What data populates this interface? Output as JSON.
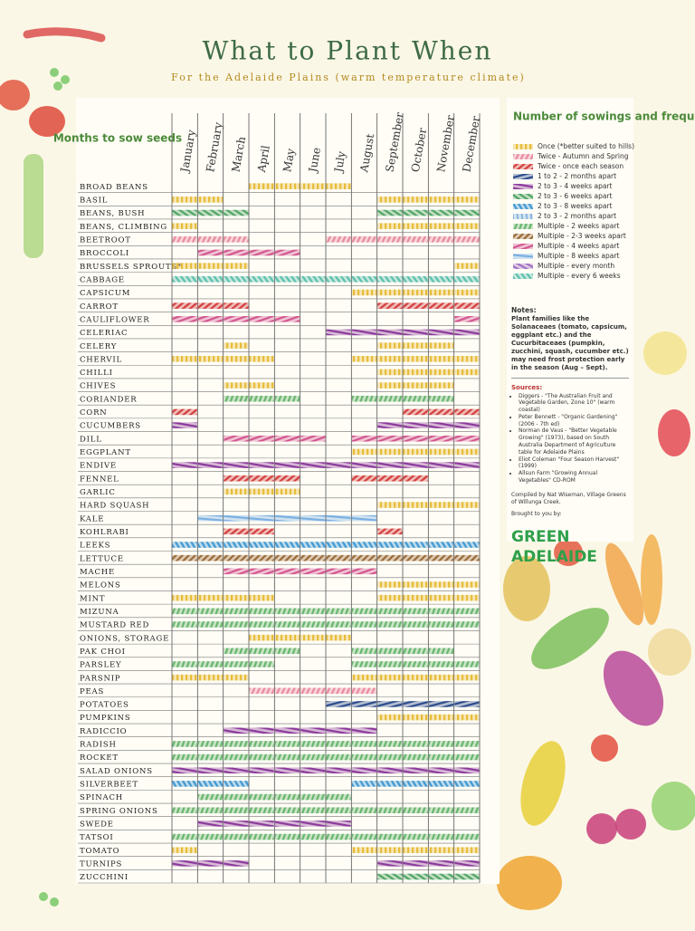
{
  "header": {
    "title": "What to Plant When",
    "subtitle": "For the Adelaide Plains (warm temperature climate)"
  },
  "table": {
    "corner": "Months to sow seeds",
    "months": [
      "January",
      "February",
      "March",
      "April",
      "May",
      "June",
      "July",
      "August",
      "September",
      "October",
      "November",
      "December"
    ],
    "rows": [
      {
        "label": "Broad beans",
        "sow": [
          null,
          null,
          null,
          0,
          0,
          0,
          0,
          null,
          null,
          null,
          null,
          null
        ]
      },
      {
        "label": "Basil",
        "sow": [
          0,
          0,
          null,
          null,
          null,
          null,
          null,
          null,
          0,
          0,
          0,
          0
        ]
      },
      {
        "label": "Beans, bush",
        "sow": [
          5,
          5,
          5,
          null,
          null,
          null,
          null,
          null,
          5,
          5,
          5,
          5
        ]
      },
      {
        "label": "Beans, climbing",
        "sow": [
          0,
          null,
          null,
          null,
          null,
          null,
          null,
          null,
          0,
          0,
          0,
          0
        ]
      },
      {
        "label": "Beetroot",
        "sow": [
          1,
          1,
          1,
          null,
          null,
          null,
          1,
          1,
          1,
          1,
          1,
          1
        ]
      },
      {
        "label": "Broccoli",
        "sow": [
          null,
          10,
          10,
          10,
          10,
          null,
          null,
          null,
          null,
          null,
          null,
          null
        ]
      },
      {
        "label": "Brussels sprouts*",
        "sow": [
          0,
          0,
          0,
          null,
          null,
          null,
          null,
          null,
          null,
          null,
          null,
          0
        ]
      },
      {
        "label": "Cabbage",
        "sow": [
          13,
          13,
          13,
          13,
          13,
          13,
          13,
          13,
          13,
          13,
          13,
          13
        ]
      },
      {
        "label": "Capsicum",
        "sow": [
          null,
          null,
          null,
          null,
          null,
          null,
          null,
          0,
          0,
          0,
          0,
          0
        ]
      },
      {
        "label": "Carrot",
        "sow": [
          2,
          2,
          2,
          null,
          null,
          null,
          null,
          null,
          2,
          2,
          2,
          2
        ]
      },
      {
        "label": "Cauliflower",
        "sow": [
          10,
          10,
          10,
          10,
          10,
          null,
          null,
          null,
          null,
          null,
          null,
          10
        ]
      },
      {
        "label": "Celeriac",
        "sow": [
          null,
          null,
          null,
          null,
          null,
          null,
          4,
          4,
          4,
          4,
          4,
          4
        ]
      },
      {
        "label": "Celery",
        "sow": [
          null,
          null,
          0,
          null,
          null,
          null,
          null,
          null,
          0,
          0,
          0,
          null
        ]
      },
      {
        "label": "Chervil",
        "sow": [
          0,
          0,
          0,
          0,
          null,
          null,
          null,
          0,
          0,
          0,
          0,
          0
        ]
      },
      {
        "label": "Chilli",
        "sow": [
          null,
          null,
          null,
          null,
          null,
          null,
          null,
          null,
          0,
          0,
          0,
          0
        ]
      },
      {
        "label": "Chives",
        "sow": [
          null,
          null,
          0,
          0,
          null,
          null,
          null,
          null,
          0,
          0,
          0,
          null
        ]
      },
      {
        "label": "Coriander",
        "sow": [
          null,
          null,
          8,
          8,
          8,
          null,
          null,
          8,
          8,
          8,
          8,
          null
        ]
      },
      {
        "label": "Corn",
        "sow": [
          2,
          null,
          null,
          null,
          null,
          null,
          null,
          null,
          null,
          2,
          2,
          2
        ]
      },
      {
        "label": "Cucumbers",
        "sow": [
          4,
          null,
          null,
          null,
          null,
          null,
          null,
          null,
          4,
          4,
          4,
          4
        ]
      },
      {
        "label": "Dill",
        "sow": [
          null,
          null,
          10,
          10,
          10,
          10,
          null,
          10,
          10,
          10,
          10,
          10
        ]
      },
      {
        "label": "Eggplant",
        "sow": [
          null,
          null,
          null,
          null,
          null,
          null,
          null,
          0,
          0,
          0,
          0,
          0
        ]
      },
      {
        "label": "Endive",
        "sow": [
          4,
          4,
          4,
          4,
          4,
          4,
          4,
          4,
          4,
          4,
          4,
          4
        ]
      },
      {
        "label": "Fennel",
        "sow": [
          null,
          null,
          2,
          2,
          2,
          null,
          null,
          2,
          2,
          2,
          null,
          null
        ]
      },
      {
        "label": "Garlic",
        "sow": [
          null,
          null,
          0,
          0,
          0,
          null,
          null,
          null,
          null,
          null,
          null,
          null
        ]
      },
      {
        "label": "Hard squash",
        "sow": [
          null,
          null,
          null,
          null,
          null,
          null,
          null,
          null,
          0,
          0,
          0,
          0
        ]
      },
      {
        "label": "Kale",
        "sow": [
          null,
          11,
          11,
          11,
          11,
          11,
          11,
          11,
          null,
          null,
          null,
          null
        ]
      },
      {
        "label": "Kohlrabi",
        "sow": [
          null,
          null,
          2,
          2,
          null,
          null,
          null,
          null,
          2,
          null,
          null,
          null
        ]
      },
      {
        "label": "Leeks",
        "sow": [
          6,
          6,
          6,
          6,
          6,
          6,
          6,
          6,
          6,
          6,
          6,
          6
        ]
      },
      {
        "label": "Lettuce",
        "sow": [
          9,
          9,
          9,
          9,
          9,
          9,
          9,
          9,
          9,
          9,
          9,
          9
        ]
      },
      {
        "label": "Mache",
        "sow": [
          null,
          null,
          10,
          10,
          10,
          10,
          10,
          10,
          null,
          null,
          null,
          null
        ]
      },
      {
        "label": "Melons",
        "sow": [
          null,
          null,
          null,
          null,
          null,
          null,
          null,
          null,
          0,
          0,
          0,
          0
        ]
      },
      {
        "label": "Mint",
        "sow": [
          0,
          0,
          0,
          0,
          null,
          null,
          null,
          null,
          0,
          0,
          0,
          0
        ]
      },
      {
        "label": "Mizuna",
        "sow": [
          8,
          8,
          8,
          8,
          8,
          8,
          8,
          8,
          8,
          8,
          8,
          8
        ]
      },
      {
        "label": "Mustard red",
        "sow": [
          8,
          8,
          8,
          8,
          8,
          8,
          8,
          8,
          8,
          8,
          8,
          8
        ]
      },
      {
        "label": "Onions, storage",
        "sow": [
          null,
          null,
          null,
          0,
          0,
          0,
          0,
          null,
          null,
          null,
          null,
          null
        ]
      },
      {
        "label": "Pak choi",
        "sow": [
          null,
          null,
          8,
          8,
          8,
          null,
          null,
          8,
          8,
          8,
          8,
          null
        ]
      },
      {
        "label": "Parsley",
        "sow": [
          8,
          8,
          8,
          8,
          null,
          null,
          null,
          8,
          8,
          8,
          8,
          8
        ]
      },
      {
        "label": "Parsnip",
        "sow": [
          0,
          0,
          0,
          null,
          null,
          null,
          null,
          0,
          0,
          0,
          0,
          0
        ]
      },
      {
        "label": "Peas",
        "sow": [
          null,
          null,
          null,
          1,
          1,
          1,
          1,
          1,
          null,
          null,
          null,
          null
        ]
      },
      {
        "label": "Potatoes",
        "sow": [
          null,
          null,
          null,
          null,
          null,
          null,
          3,
          3,
          3,
          3,
          3,
          3
        ]
      },
      {
        "label": "Pumpkins",
        "sow": [
          null,
          null,
          null,
          null,
          null,
          null,
          null,
          null,
          0,
          0,
          0,
          0
        ]
      },
      {
        "label": "Radiccio",
        "sow": [
          null,
          null,
          4,
          4,
          4,
          4,
          4,
          4,
          null,
          null,
          null,
          null
        ]
      },
      {
        "label": "Radish",
        "sow": [
          8,
          8,
          8,
          8,
          8,
          8,
          8,
          8,
          8,
          8,
          8,
          8
        ]
      },
      {
        "label": "Rocket",
        "sow": [
          8,
          8,
          8,
          8,
          8,
          8,
          8,
          8,
          8,
          8,
          8,
          8
        ]
      },
      {
        "label": "Salad onions",
        "sow": [
          4,
          4,
          4,
          4,
          4,
          4,
          4,
          4,
          4,
          4,
          4,
          4
        ]
      },
      {
        "label": "Silverbeet",
        "sow": [
          6,
          6,
          6,
          null,
          null,
          null,
          null,
          6,
          6,
          6,
          6,
          6
        ]
      },
      {
        "label": "Spinach",
        "sow": [
          null,
          8,
          8,
          8,
          8,
          8,
          8,
          null,
          null,
          null,
          null,
          null
        ]
      },
      {
        "label": "Spring onions",
        "sow": [
          8,
          8,
          8,
          8,
          8,
          8,
          8,
          8,
          8,
          8,
          8,
          8
        ]
      },
      {
        "label": "Swede",
        "sow": [
          null,
          4,
          4,
          4,
          4,
          4,
          4,
          null,
          null,
          null,
          null,
          null
        ]
      },
      {
        "label": "Tatsoi",
        "sow": [
          8,
          8,
          8,
          8,
          8,
          8,
          8,
          8,
          8,
          8,
          8,
          8
        ]
      },
      {
        "label": "Tomato",
        "sow": [
          0,
          null,
          null,
          null,
          null,
          null,
          null,
          0,
          0,
          0,
          0,
          0
        ]
      },
      {
        "label": "Turnips",
        "sow": [
          4,
          4,
          4,
          null,
          null,
          null,
          null,
          null,
          4,
          4,
          4,
          4
        ]
      },
      {
        "label": "Zucchini",
        "sow": [
          null,
          null,
          null,
          null,
          null,
          null,
          null,
          null,
          5,
          5,
          5,
          5
        ]
      }
    ]
  },
  "legend": {
    "title": "Number of sowings and frequency",
    "items": [
      {
        "label": "Once (*better suited to hills)",
        "color": "#e6bd3c"
      },
      {
        "label": "Twice - Autumn and Spring",
        "color": "#e98aa0"
      },
      {
        "label": "Twice - once each season",
        "color": "#d23e3e"
      },
      {
        "label": "1 to 2 - 2 months apart",
        "color": "#2b4b8c"
      },
      {
        "label": "2 to 3 - 4 weeks apart",
        "color": "#8b3a9b"
      },
      {
        "label": "2 to 3 - 6 weeks apart",
        "color": "#4fa464"
      },
      {
        "label": "2 to 3 - 8 weeks apart",
        "color": "#3f98d2"
      },
      {
        "label": "2 to 3 - 2 months apart",
        "color": "#8cb9e2"
      },
      {
        "label": "Multiple - 2 weeks apart",
        "color": "#68b56e"
      },
      {
        "label": "Multiple - 2-3 weeks apart",
        "color": "#9b6a38"
      },
      {
        "label": "Multiple - 4 weeks apart",
        "color": "#d2558f"
      },
      {
        "label": "Multiple - 8 weeks apart",
        "color": "#79afe2"
      },
      {
        "label": "Multiple - every month",
        "color": "#a06fc2"
      },
      {
        "label": "Multiple - every 6 weeks",
        "color": "#5cbfae"
      }
    ]
  },
  "notes": {
    "heading": "Notes:",
    "text": "Plant families like the Solanaceaes (tomato, capsicum, eggplant etc.) and the Cucurbitaceaes (pumpkin, zucchini, squash, cucumber etc.) may need frost protection early in the season (Aug – Sept)."
  },
  "sources": {
    "heading": "Sources:",
    "items": [
      "Diggers - \"The Australian Fruit and Vegetable Garden, Zone 10\" (warm coastal)",
      "Peter Bennett - \"Organic Gardening\" (2006 - 7th ed)",
      "Norman de Vaus - \"Better Vegetable Growing\" (1973), based on South Australia Department of Agriculture table for Adelaide Plains",
      "Eliot Coleman \"Four Season Harvest\" (1999)",
      "Allsun Farm \"Growing Annual Vegetables\" CD-ROM"
    ]
  },
  "credits": {
    "compiled": "Compiled by Nat Wiseman, Village Greens of Willunga Creek.",
    "brought": "Brought to you by:",
    "brand": "GREEN ADELAIDE"
  }
}
